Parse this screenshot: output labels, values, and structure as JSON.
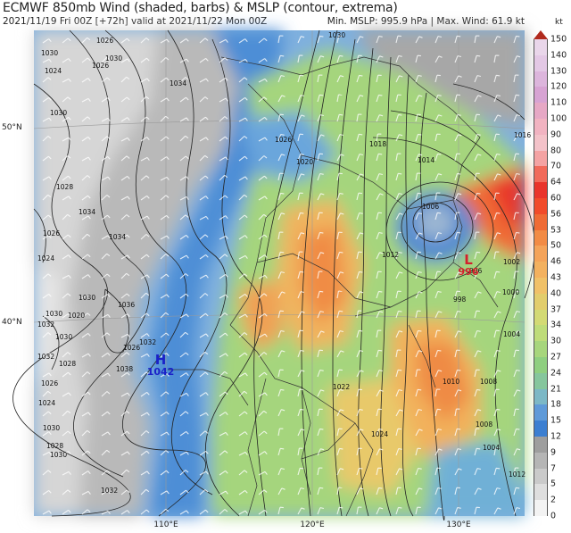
{
  "header": {
    "title": "ECMWF 850mb Wind (shaded, barbs) & MSLP (contour, extrema)",
    "subtitle": "2021/11/19 Fri 00Z [+72h] valid at 2021/11/22 Mon 00Z",
    "stats": "Min. MSLP: 995.9 hPa | Max. Wind: 61.9 kt"
  },
  "axes": {
    "lat_labels": [
      "50°N",
      "40°N"
    ],
    "lon_labels": [
      "110°E",
      "120°E",
      "130°E"
    ]
  },
  "colorbar": {
    "unit": "kt",
    "ticks": [
      "150",
      "140",
      "130",
      "120",
      "110",
      "100",
      "90",
      "80",
      "70",
      "64",
      "60",
      "56",
      "53",
      "50",
      "46",
      "43",
      "40",
      "37",
      "34",
      "30",
      "27",
      "24",
      "21",
      "18",
      "15",
      "12",
      "9",
      "7",
      "5",
      "2",
      "0"
    ],
    "colors": [
      "#e9d6ea",
      "#e3c8e5",
      "#dcb5dc",
      "#d7a3d3",
      "#e6a8c5",
      "#f1b3c1",
      "#f3c2c9",
      "#f4a3a3",
      "#f16a5a",
      "#e9342b",
      "#f14b2a",
      "#ef6b35",
      "#f28b45",
      "#f4a359",
      "#f3b15f",
      "#f0c168",
      "#e2cd6c",
      "#d3da74",
      "#bedc79",
      "#a7d67c",
      "#8fcf80",
      "#86c69d",
      "#7cb8c6",
      "#5f9ad8",
      "#3c7fd1",
      "#9e9e9e",
      "#b5b5b5",
      "#cacaca",
      "#dedede",
      "#f3f3f3"
    ],
    "tip_color": "#b12a1e"
  },
  "contour_labels": [
    "1030",
    "1026",
    "1030",
    "1030",
    "1026",
    "1024",
    "1034",
    "1030",
    "1028",
    "1026",
    "1024",
    "1034",
    "1034",
    "1030",
    "1020",
    "1030",
    "1032",
    "1026",
    "1036",
    "1038",
    "1032",
    "1030",
    "1032",
    "1028",
    "1026",
    "1024",
    "1030",
    "1028",
    "1030",
    "1032",
    "1026",
    "1018",
    "1020",
    "1014",
    "1016",
    "1012",
    "1010",
    "1008",
    "1006",
    "1004",
    "1002",
    "1000",
    "998",
    "996",
    "1022",
    "1024",
    "1008",
    "1004",
    "1012"
  ],
  "extrema": {
    "high": {
      "letter": "H",
      "value": "1042",
      "color": "#1b22c8"
    },
    "low": {
      "letter": "L",
      "value": "996",
      "color": "#d4202c"
    }
  }
}
